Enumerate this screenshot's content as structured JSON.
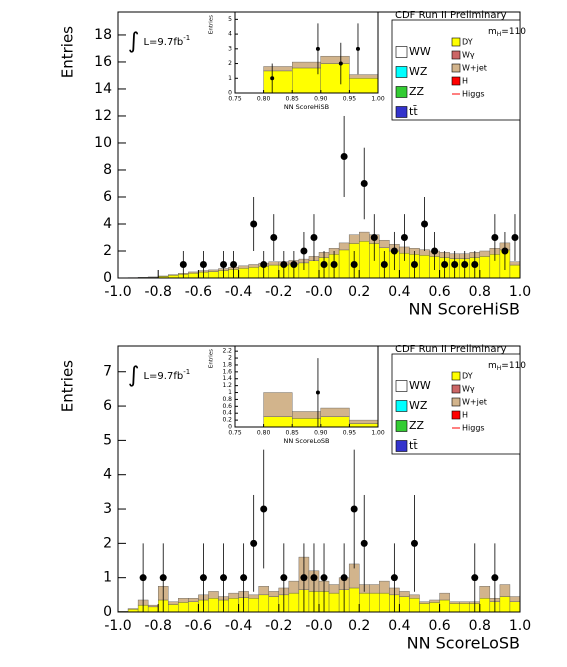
{
  "chart_data": [
    {
      "type": "histogram",
      "x_label": "NN ScoreHiSB",
      "y_label": "Entries",
      "cdf_label": "CDF Run II Preliminary",
      "lumi": {
        "symbol": "∫",
        "text": "L=9.7fb",
        "sup": "-1"
      },
      "mass": {
        "m": "m",
        "sub": "H",
        "rest": "=110"
      },
      "xlim": [
        -1,
        1
      ],
      "ylim": [
        0,
        19.7
      ],
      "xticks": [
        {
          "value": -1,
          "label": "-1.0"
        },
        -0.8,
        -0.6,
        -0.4,
        -0.2,
        {
          "value": 0,
          "label": "-0.0"
        },
        0.2,
        0.4,
        0.6,
        0.8,
        {
          "value": 1,
          "label": "1.0"
        }
      ],
      "yticks": [
        0,
        2,
        4,
        6,
        8,
        10,
        12,
        14,
        16,
        18
      ],
      "bins": [
        -1,
        -0.95,
        -0.9,
        -0.85,
        -0.8,
        -0.75,
        -0.7,
        -0.65,
        -0.6,
        -0.55,
        -0.5,
        -0.45,
        -0.4,
        -0.35,
        -0.3,
        -0.25,
        -0.2,
        -0.15,
        -0.1,
        -0.05,
        0,
        0.05,
        0.1,
        0.15,
        0.2,
        0.25,
        0.3,
        0.35,
        0.4,
        0.45,
        0.5,
        0.55,
        0.6,
        0.65,
        0.7,
        0.75,
        0.8,
        0.85,
        0.9,
        0.95,
        1
      ],
      "series": [
        {
          "name": "WW",
          "color": "#ffffff"
        },
        {
          "name": "WZ",
          "color": "#00ffff"
        },
        {
          "name": "ZZ",
          "color": "#33cc33"
        },
        {
          "name": "tt̄",
          "color": "#3333cc"
        },
        {
          "name": "DY",
          "color": "#ffff00",
          "values": [
            0.02,
            0.03,
            0.04,
            0.06,
            0.12,
            0.2,
            0.28,
            0.36,
            0.44,
            0.48,
            0.56,
            0.64,
            0.72,
            0.8,
            0.88,
            0.96,
            0.96,
            1.04,
            1.12,
            1.28,
            1.52,
            1.76,
            2.08,
            2.56,
            2.72,
            2.56,
            2.24,
            2.0,
            1.84,
            1.76,
            1.68,
            1.6,
            1.52,
            1.44,
            1.44,
            1.52,
            1.6,
            1.76,
            2.08,
            0.96
          ]
        },
        {
          "name": "Wγ",
          "color": "#cc6666"
        },
        {
          "name": "W+jet",
          "color": "#d2b48c",
          "values": [
            0,
            0,
            0.01,
            0.02,
            0.03,
            0.05,
            0.07,
            0.09,
            0.11,
            0.12,
            0.14,
            0.16,
            0.18,
            0.2,
            0.22,
            0.24,
            0.24,
            0.26,
            0.28,
            0.32,
            0.38,
            0.44,
            0.52,
            0.64,
            0.68,
            0.64,
            0.56,
            0.5,
            0.46,
            0.44,
            0.42,
            0.4,
            0.38,
            0.36,
            0.36,
            0.38,
            0.4,
            0.44,
            0.52,
            0.24
          ]
        },
        {
          "name": "H",
          "color": "#ff0000"
        },
        {
          "name": "Higgs",
          "color": "#ff0000",
          "style": "line"
        }
      ],
      "points": {
        "x": [
          -0.675,
          -0.575,
          -0.475,
          -0.425,
          -0.325,
          -0.275,
          -0.225,
          -0.175,
          -0.125,
          -0.075,
          -0.025,
          0.025,
          0.075,
          0.125,
          0.175,
          0.225,
          0.275,
          0.325,
          0.375,
          0.425,
          0.475,
          0.525,
          0.575,
          0.625,
          0.675,
          0.725,
          0.775,
          0.875,
          0.925,
          0.975
        ],
        "y": [
          1,
          1,
          1,
          1,
          4,
          1,
          3,
          1,
          1,
          2,
          3,
          1,
          1,
          9,
          1,
          7,
          3,
          1,
          2,
          3,
          1,
          4,
          2,
          1,
          1,
          1,
          1,
          3,
          2,
          3
        ],
        "errors": [
          1,
          1,
          1,
          1,
          2,
          1,
          1.73,
          1,
          1,
          1.41,
          1.73,
          1,
          1,
          3,
          1,
          2.65,
          1.73,
          1,
          1.41,
          1.73,
          1,
          2,
          1.41,
          1,
          1,
          1,
          1,
          1.73,
          1.41,
          1.73
        ]
      }
    },
    {
      "type": "histogram",
      "x_label": "NN ScoreHiSB",
      "y_label": "Entries",
      "xlim": [
        0.75,
        1
      ],
      "ylim": [
        0,
        5.5
      ],
      "xticks": [
        0.75,
        {
          "value": 0.8,
          "label": "0.80"
        },
        0.85,
        {
          "value": 0.9,
          "label": "0.90"
        },
        0.95,
        {
          "value": 1,
          "label": "1.00"
        }
      ],
      "yticks": [
        0,
        1,
        2,
        3,
        4,
        5
      ],
      "bins": [
        0.75,
        0.8,
        0.85,
        0.9,
        0.95,
        1
      ],
      "series": [
        {
          "name": "DY",
          "color": "#ffff00",
          "values": [
            0,
            1.5,
            1.7,
            2.0,
            1.0
          ]
        },
        {
          "name": "W+jet",
          "color": "#d2b48c",
          "values": [
            0,
            0.3,
            0.4,
            0.5,
            0.25
          ]
        }
      ],
      "points": {
        "x": [
          0.815,
          0.895,
          0.935,
          0.965
        ],
        "y": [
          1,
          3,
          2,
          3
        ],
        "errors": [
          1,
          1.73,
          1.41,
          1.73
        ]
      }
    },
    {
      "type": "histogram",
      "x_label": "NN ScoreLoSB",
      "y_label": "Entries",
      "cdf_label": "CDF Run II Preliminary",
      "lumi": {
        "symbol": "∫",
        "text": "L=9.7fb",
        "sup": "-1"
      },
      "mass": {
        "m": "m",
        "sub": "H",
        "rest": "=110"
      },
      "xlim": [
        -1,
        1
      ],
      "ylim": [
        0,
        7.75
      ],
      "xticks": [
        {
          "value": -1,
          "label": "-1.0"
        },
        -0.8,
        -0.6,
        -0.4,
        -0.2,
        {
          "value": 0,
          "label": "-0.0"
        },
        0.2,
        0.4,
        0.6,
        0.8,
        {
          "value": 1,
          "label": "1.0"
        }
      ],
      "yticks": [
        0,
        1,
        2,
        3,
        4,
        5,
        6,
        7
      ],
      "bins": [
        -1,
        -0.95,
        -0.9,
        -0.85,
        -0.8,
        -0.75,
        -0.7,
        -0.65,
        -0.6,
        -0.55,
        -0.5,
        -0.45,
        -0.4,
        -0.35,
        -0.3,
        -0.25,
        -0.2,
        -0.15,
        -0.1,
        -0.05,
        0,
        0.05,
        0.1,
        0.15,
        0.2,
        0.25,
        0.3,
        0.35,
        0.4,
        0.45,
        0.5,
        0.55,
        0.6,
        0.65,
        0.7,
        0.75,
        0.8,
        0.85,
        0.9,
        0.95,
        1
      ],
      "series": [
        {
          "name": "WW",
          "color": "#ffffff"
        },
        {
          "name": "WZ",
          "color": "#00ffff"
        },
        {
          "name": "ZZ",
          "color": "#33cc33"
        },
        {
          "name": "tt̄",
          "color": "#3333cc"
        },
        {
          "name": "DY",
          "color": "#ffff00",
          "values": [
            0.02,
            0.08,
            0.2,
            0.15,
            0.35,
            0.22,
            0.28,
            0.3,
            0.35,
            0.4,
            0.35,
            0.4,
            0.42,
            0.4,
            0.5,
            0.45,
            0.5,
            0.55,
            0.65,
            0.6,
            0.6,
            0.55,
            0.65,
            0.7,
            0.55,
            0.55,
            0.55,
            0.5,
            0.45,
            0.4,
            0.25,
            0.28,
            0.35,
            0.25,
            0.25,
            0.25,
            0.4,
            0.3,
            0.45,
            0.3
          ]
        },
        {
          "name": "Wγ",
          "color": "#cc6666"
        },
        {
          "name": "W+jet",
          "color": "#d2b48c",
          "values": [
            0,
            0.02,
            0.15,
            0.05,
            0.4,
            0.08,
            0.12,
            0.1,
            0.15,
            0.2,
            0.1,
            0.15,
            0.18,
            0.1,
            0.25,
            0.15,
            0.2,
            0.35,
            0.95,
            0.6,
            0.3,
            0.25,
            0.35,
            0.7,
            0.25,
            0.25,
            0.35,
            0.2,
            0.15,
            0.1,
            0.05,
            0.07,
            0.2,
            0.05,
            0.05,
            0.05,
            0.35,
            0.1,
            0.35,
            0.15
          ]
        },
        {
          "name": "H",
          "color": "#ff0000"
        },
        {
          "name": "Higgs",
          "color": "#ff0000",
          "style": "line"
        }
      ],
      "points": {
        "x": [
          -0.875,
          -0.775,
          -0.575,
          -0.475,
          -0.375,
          -0.325,
          -0.275,
          -0.175,
          -0.075,
          -0.025,
          0.025,
          0.125,
          0.175,
          0.225,
          0.375,
          0.475,
          0.775,
          0.875
        ],
        "y": [
          1,
          1,
          1,
          1,
          1,
          2,
          3,
          1,
          1,
          1,
          1,
          1,
          3,
          2,
          1,
          2,
          1,
          1
        ],
        "errors": [
          1,
          1,
          1,
          1,
          1,
          1.41,
          1.73,
          1,
          1,
          1,
          1,
          1,
          1.73,
          1.41,
          1,
          1.41,
          1,
          1
        ]
      }
    },
    {
      "type": "histogram",
      "x_label": "NN ScoreLoSB",
      "y_label": "Entries",
      "xlim": [
        0.75,
        1
      ],
      "ylim": [
        0,
        2.35
      ],
      "xticks": [
        0.75,
        {
          "value": 0.8,
          "label": "0.80"
        },
        0.85,
        {
          "value": 0.9,
          "label": "0.90"
        },
        0.95,
        {
          "value": 1,
          "label": "1.00"
        }
      ],
      "yticks": [
        0,
        0.2,
        0.4,
        0.6,
        0.8,
        1,
        1.2,
        1.4,
        1.6,
        1.8,
        2,
        2.2
      ],
      "bins": [
        0.75,
        0.8,
        0.85,
        0.9,
        0.95,
        1
      ],
      "series": [
        {
          "name": "DY",
          "color": "#ffff00",
          "values": [
            0,
            0.3,
            0.25,
            0.3,
            0.1
          ]
        },
        {
          "name": "W+jet",
          "color": "#d2b48c",
          "values": [
            0,
            0.7,
            0.2,
            0.25,
            0.1
          ]
        }
      ],
      "points": {
        "x": [
          0.895
        ],
        "y": [
          1
        ],
        "errors": [
          1
        ]
      }
    }
  ]
}
